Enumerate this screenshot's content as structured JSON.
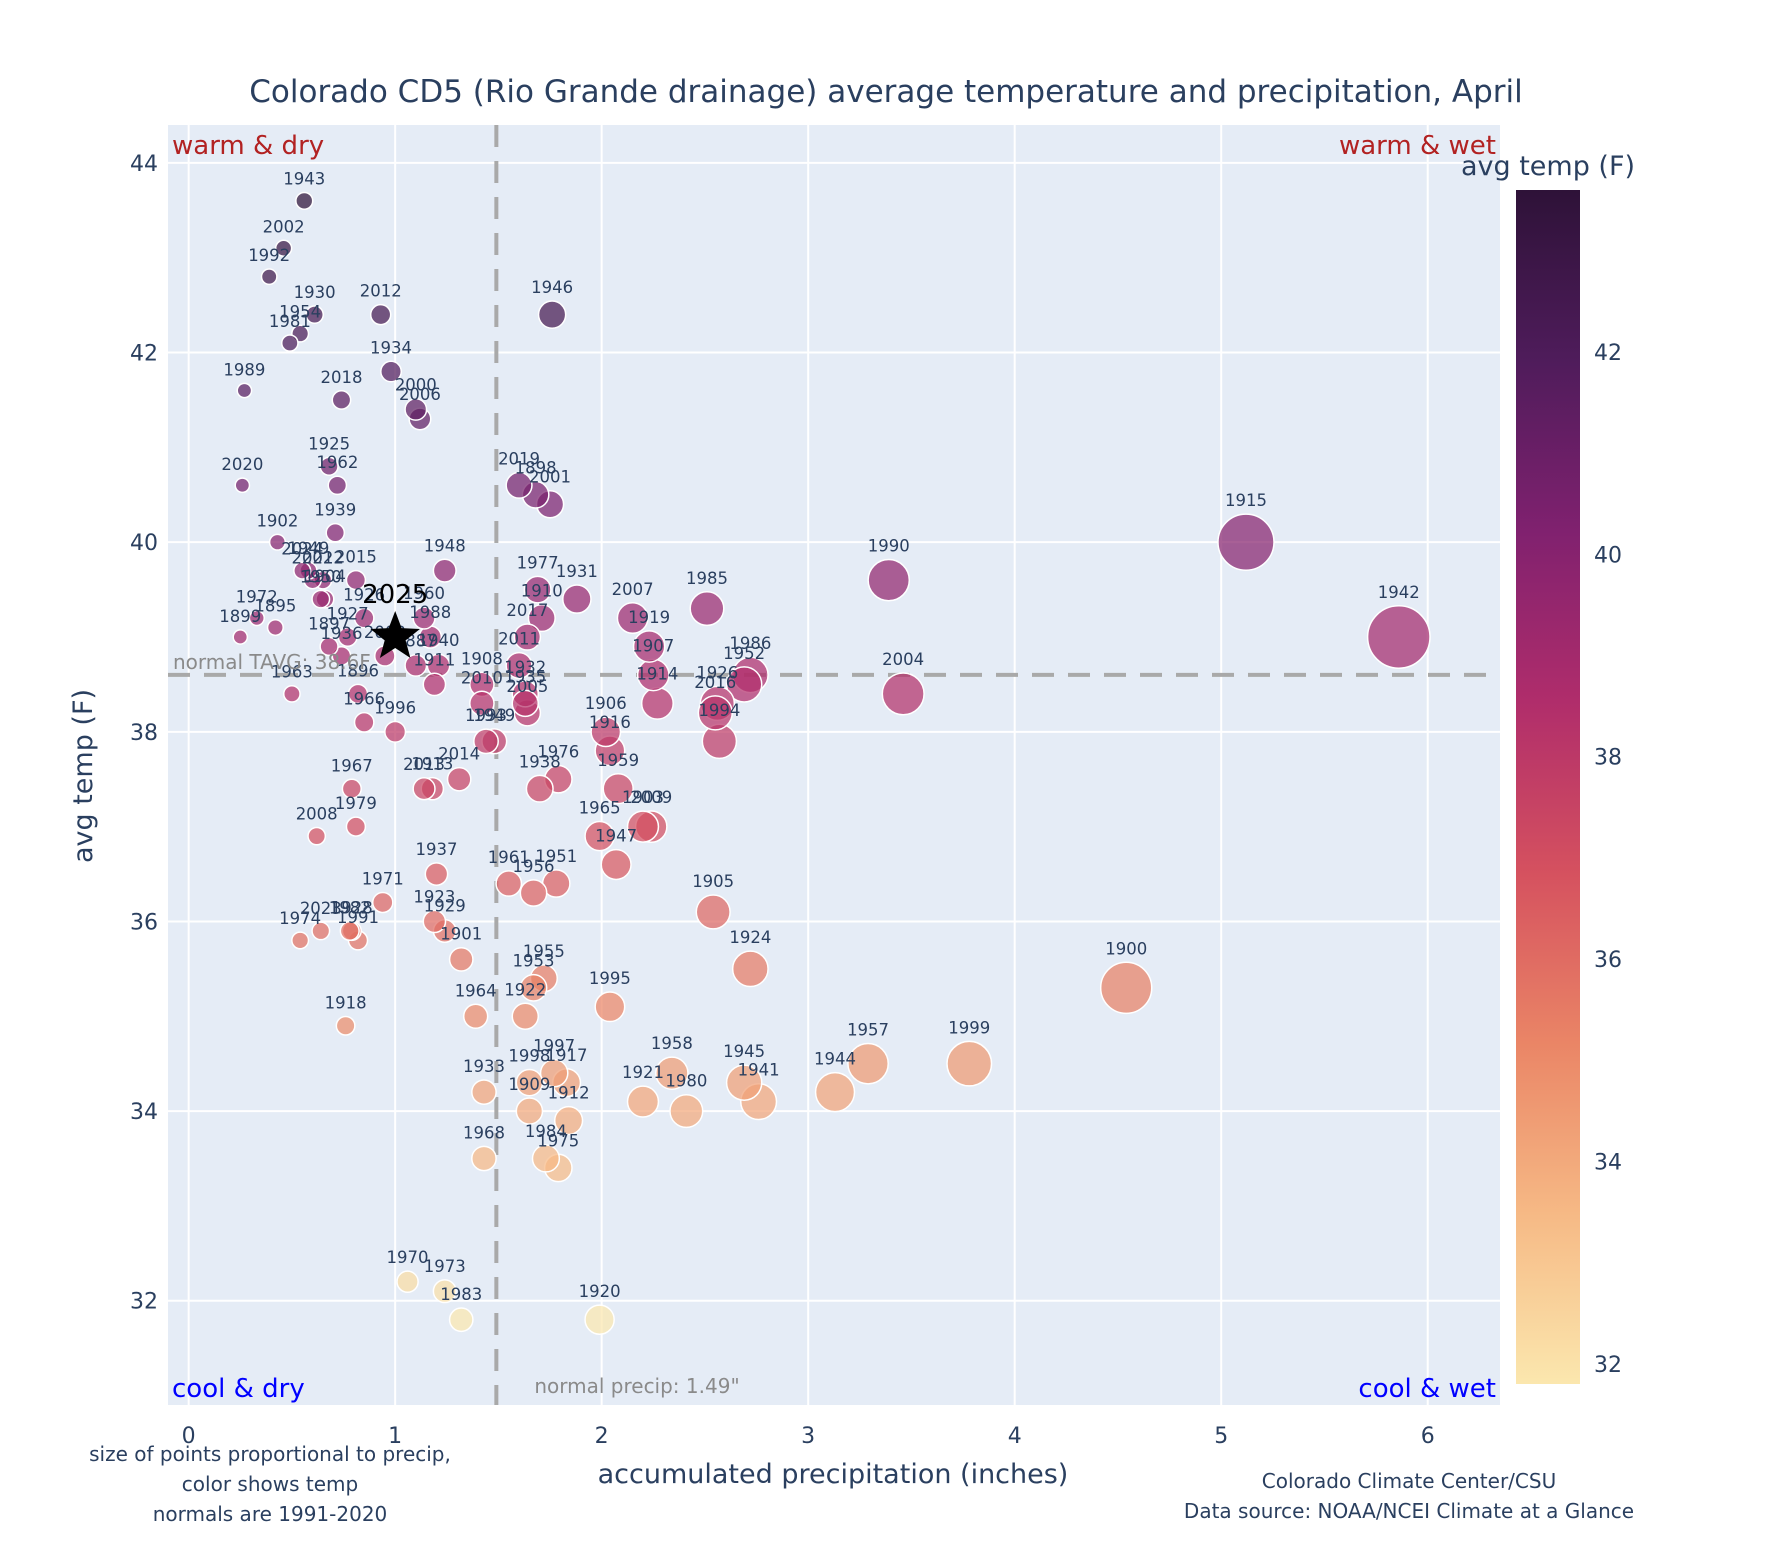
{
  "chart_data": {
    "type": "scatter",
    "title": "Colorado CD5 (Rio Grande drainage) average temperature and precipitation, April",
    "xlabel": "accumulated precipitation (inches)",
    "ylabel": "avg temp (F)",
    "xlim": [
      -0.1,
      6.35
    ],
    "ylim": [
      30.9,
      44.4
    ],
    "xticks": [
      0,
      1,
      2,
      3,
      4,
      5,
      6
    ],
    "yticks": [
      32,
      34,
      36,
      38,
      40,
      42,
      44
    ],
    "grid": true,
    "colorbar": {
      "title": "avg temp (F)",
      "range": [
        31.8,
        43.6
      ],
      "ticks": [
        32,
        34,
        36,
        38,
        40,
        42
      ],
      "colors": [
        "#fbe7ae",
        "#f6b985",
        "#ea8566",
        "#d5515f",
        "#b02d6b",
        "#80216f",
        "#4f1c5b",
        "#2e1238"
      ]
    },
    "colors": {
      "plot_bg": "#e5ecf6",
      "grid": "#ffffff",
      "warm_label": "#b22222",
      "cool_label": "#0000ff",
      "reference_line": "#a9a9a9",
      "text": "#2a3f5f"
    },
    "quadrant_labels": {
      "top_left": "warm & dry",
      "top_right": "warm & wet",
      "bottom_left": "cool & dry",
      "bottom_right": "cool & wet"
    },
    "reference_lines": {
      "normal_tavg": 38.6,
      "normal_tavg_label": "normal TAVG: 38.6F",
      "normal_precip": 1.49,
      "normal_precip_label": "normal precip: 1.49\""
    },
    "highlight": {
      "label": "2025",
      "x": 1.0,
      "y": 39.0,
      "marker": "star"
    },
    "size_note": [
      "size of points proportional to precip,",
      "color shows temp",
      "normals are 1991-2020"
    ],
    "credits": [
      "Colorado Climate Center/CSU",
      "Data source: NOAA/NCEI Climate at a Glance"
    ],
    "points": [
      {
        "year": "1943",
        "x": 0.56,
        "y": 43.6
      },
      {
        "year": "2002",
        "x": 0.46,
        "y": 43.1
      },
      {
        "year": "1992",
        "x": 0.39,
        "y": 42.8
      },
      {
        "year": "1930",
        "x": 0.61,
        "y": 42.4
      },
      {
        "year": "1954",
        "x": 0.54,
        "y": 42.2
      },
      {
        "year": "1981",
        "x": 0.49,
        "y": 42.1
      },
      {
        "year": "2012",
        "x": 0.93,
        "y": 42.4
      },
      {
        "year": "1946",
        "x": 1.76,
        "y": 42.4
      },
      {
        "year": "1934",
        "x": 0.98,
        "y": 41.8
      },
      {
        "year": "1989",
        "x": 0.27,
        "y": 41.6
      },
      {
        "year": "2018",
        "x": 0.74,
        "y": 41.5
      },
      {
        "year": "2000",
        "x": 1.1,
        "y": 41.4
      },
      {
        "year": "2006",
        "x": 1.12,
        "y": 41.3
      },
      {
        "year": "1925",
        "x": 0.68,
        "y": 40.8
      },
      {
        "year": "1962",
        "x": 0.72,
        "y": 40.6
      },
      {
        "year": "2020",
        "x": 0.26,
        "y": 40.6
      },
      {
        "year": "2019",
        "x": 1.6,
        "y": 40.6
      },
      {
        "year": "1898",
        "x": 1.68,
        "y": 40.5
      },
      {
        "year": "2001",
        "x": 1.75,
        "y": 40.4
      },
      {
        "year": "1939",
        "x": 0.71,
        "y": 40.1
      },
      {
        "year": "1902",
        "x": 0.43,
        "y": 40.0
      },
      {
        "year": "1924b",
        "label": "2024",
        "x": 0.55,
        "y": 39.7
      },
      {
        "year": "1949",
        "x": 0.58,
        "y": 39.7
      },
      {
        "year": "1915",
        "x": 5.12,
        "y": 40.0
      },
      {
        "year": "1948",
        "x": 1.24,
        "y": 39.7
      },
      {
        "year": "2015",
        "x": 0.81,
        "y": 39.6
      },
      {
        "year": "2021",
        "x": 0.6,
        "y": 39.6
      },
      {
        "year": "2022",
        "x": 0.65,
        "y": 39.6
      },
      {
        "year": "1990",
        "x": 3.39,
        "y": 39.6
      },
      {
        "year": "1977",
        "x": 1.69,
        "y": 39.5
      },
      {
        "year": "1931",
        "x": 1.88,
        "y": 39.4
      },
      {
        "year": "1985",
        "x": 2.51,
        "y": 39.3
      },
      {
        "year": "1950",
        "x": 0.64,
        "y": 39.4
      },
      {
        "year": "1904",
        "x": 0.66,
        "y": 39.4
      },
      {
        "year": "1926b",
        "label": "1926",
        "x": 0.85,
        "y": 39.2
      },
      {
        "year": "1960",
        "x": 1.14,
        "y": 39.2
      },
      {
        "year": "1910",
        "x": 1.71,
        "y": 39.2
      },
      {
        "year": "2007",
        "x": 2.15,
        "y": 39.2
      },
      {
        "year": "1972",
        "x": 0.33,
        "y": 39.2
      },
      {
        "year": "1895",
        "x": 0.42,
        "y": 39.1
      },
      {
        "year": "1927",
        "x": 0.77,
        "y": 39.0
      },
      {
        "year": "1988",
        "x": 1.17,
        "y": 39.0
      },
      {
        "year": "2017",
        "x": 1.64,
        "y": 39.0
      },
      {
        "year": "1919",
        "x": 2.23,
        "y": 38.9
      },
      {
        "year": "1942",
        "x": 5.86,
        "y": 39.0
      },
      {
        "year": "1899",
        "x": 0.25,
        "y": 39.0
      },
      {
        "year": "1897",
        "x": 0.68,
        "y": 38.9
      },
      {
        "year": "1936",
        "x": 0.74,
        "y": 38.8
      },
      {
        "year": "2003",
        "x": 0.95,
        "y": 38.8
      },
      {
        "year": "1940",
        "x": 1.21,
        "y": 38.7
      },
      {
        "year": "1887",
        "x": 1.1,
        "y": 38.7
      },
      {
        "year": "2011",
        "x": 1.6,
        "y": 38.7
      },
      {
        "year": "1907",
        "x": 2.25,
        "y": 38.6
      },
      {
        "year": "1986",
        "x": 2.72,
        "y": 38.6
      },
      {
        "year": "1952",
        "x": 2.69,
        "y": 38.5
      },
      {
        "year": "1911",
        "x": 1.19,
        "y": 38.5
      },
      {
        "year": "1908",
        "x": 1.42,
        "y": 38.5
      },
      {
        "year": "1932",
        "x": 1.63,
        "y": 38.4
      },
      {
        "year": "1935",
        "x": 1.63,
        "y": 38.3
      },
      {
        "year": "1914",
        "x": 2.27,
        "y": 38.3
      },
      {
        "year": "1926",
        "x": 2.56,
        "y": 38.3
      },
      {
        "year": "2016",
        "x": 2.55,
        "y": 38.2
      },
      {
        "year": "2004",
        "x": 3.46,
        "y": 38.4
      },
      {
        "year": "1963",
        "x": 0.5,
        "y": 38.4
      },
      {
        "year": "1896",
        "x": 0.82,
        "y": 38.4
      },
      {
        "year": "2010",
        "x": 1.42,
        "y": 38.3
      },
      {
        "year": "2005",
        "x": 1.64,
        "y": 38.2
      },
      {
        "year": "1966",
        "x": 0.85,
        "y": 38.1
      },
      {
        "year": "1996",
        "x": 1.0,
        "y": 38.0
      },
      {
        "year": "1906",
        "x": 2.02,
        "y": 38.0
      },
      {
        "year": "1994",
        "x": 2.57,
        "y": 37.9
      },
      {
        "year": "1993",
        "x": 1.44,
        "y": 37.9
      },
      {
        "year": "1939b",
        "label": "1949",
        "x": 1.48,
        "y": 37.9
      },
      {
        "year": "1916",
        "x": 2.04,
        "y": 37.8
      },
      {
        "year": "2014",
        "x": 1.31,
        "y": 37.5
      },
      {
        "year": "1976",
        "x": 1.79,
        "y": 37.5
      },
      {
        "year": "1938",
        "x": 1.7,
        "y": 37.4
      },
      {
        "year": "1959",
        "x": 2.08,
        "y": 37.4
      },
      {
        "year": "1967",
        "x": 0.79,
        "y": 37.4
      },
      {
        "year": "2013",
        "x": 1.14,
        "y": 37.4
      },
      {
        "year": "1913",
        "x": 1.18,
        "y": 37.4
      },
      {
        "year": "1903",
        "x": 2.2,
        "y": 37.0
      },
      {
        "year": "2009",
        "x": 2.24,
        "y": 37.0
      },
      {
        "year": "1979",
        "x": 0.81,
        "y": 37.0
      },
      {
        "year": "1965",
        "x": 1.99,
        "y": 36.9
      },
      {
        "year": "2008",
        "x": 0.62,
        "y": 36.9
      },
      {
        "year": "1947",
        "x": 2.07,
        "y": 36.6
      },
      {
        "year": "1937",
        "x": 1.2,
        "y": 36.5
      },
      {
        "year": "1961",
        "x": 1.55,
        "y": 36.4
      },
      {
        "year": "1951",
        "x": 1.78,
        "y": 36.4
      },
      {
        "year": "1956",
        "x": 1.67,
        "y": 36.3
      },
      {
        "year": "1971",
        "x": 0.94,
        "y": 36.2
      },
      {
        "year": "1905",
        "x": 2.54,
        "y": 36.1
      },
      {
        "year": "1923",
        "x": 1.19,
        "y": 36.0
      },
      {
        "year": "1929",
        "x": 1.24,
        "y": 35.9
      },
      {
        "year": "1928",
        "x": 0.79,
        "y": 35.9
      },
      {
        "year": "2023",
        "x": 0.64,
        "y": 35.9
      },
      {
        "year": "1982",
        "x": 0.78,
        "y": 35.9
      },
      {
        "year": "1991",
        "x": 0.82,
        "y": 35.8
      },
      {
        "year": "1974",
        "x": 0.54,
        "y": 35.8
      },
      {
        "year": "1901",
        "x": 1.32,
        "y": 35.6
      },
      {
        "year": "1924",
        "x": 2.72,
        "y": 35.5
      },
      {
        "year": "1955",
        "x": 1.72,
        "y": 35.4
      },
      {
        "year": "1953",
        "x": 1.67,
        "y": 35.3
      },
      {
        "year": "1900",
        "x": 4.54,
        "y": 35.3
      },
      {
        "year": "1995",
        "x": 2.04,
        "y": 35.1
      },
      {
        "year": "1964",
        "x": 1.39,
        "y": 35.0
      },
      {
        "year": "1922",
        "x": 1.63,
        "y": 35.0
      },
      {
        "year": "1918",
        "x": 0.76,
        "y": 34.9
      },
      {
        "year": "1957",
        "x": 3.29,
        "y": 34.5
      },
      {
        "year": "1999",
        "x": 3.78,
        "y": 34.5
      },
      {
        "year": "1958",
        "x": 2.34,
        "y": 34.4
      },
      {
        "year": "1997",
        "x": 1.77,
        "y": 34.4
      },
      {
        "year": "1917",
        "x": 1.83,
        "y": 34.3
      },
      {
        "year": "1945",
        "x": 2.69,
        "y": 34.3
      },
      {
        "year": "1998",
        "x": 1.65,
        "y": 34.3
      },
      {
        "year": "1933",
        "x": 1.43,
        "y": 34.2
      },
      {
        "year": "1944",
        "x": 3.13,
        "y": 34.2
      },
      {
        "year": "1921",
        "x": 2.2,
        "y": 34.1
      },
      {
        "year": "1941",
        "x": 2.76,
        "y": 34.1
      },
      {
        "year": "1909",
        "x": 1.65,
        "y": 34.0
      },
      {
        "year": "1980",
        "x": 2.41,
        "y": 34.0
      },
      {
        "year": "1912",
        "x": 1.84,
        "y": 33.9
      },
      {
        "year": "1968",
        "x": 1.43,
        "y": 33.5
      },
      {
        "year": "1984",
        "x": 1.73,
        "y": 33.5
      },
      {
        "year": "1975",
        "x": 1.79,
        "y": 33.4
      },
      {
        "year": "1970",
        "x": 1.06,
        "y": 32.2
      },
      {
        "year": "1973",
        "x": 1.24,
        "y": 32.1
      },
      {
        "year": "1983",
        "x": 1.32,
        "y": 31.8
      },
      {
        "year": "1920",
        "x": 1.99,
        "y": 31.8
      }
    ]
  }
}
